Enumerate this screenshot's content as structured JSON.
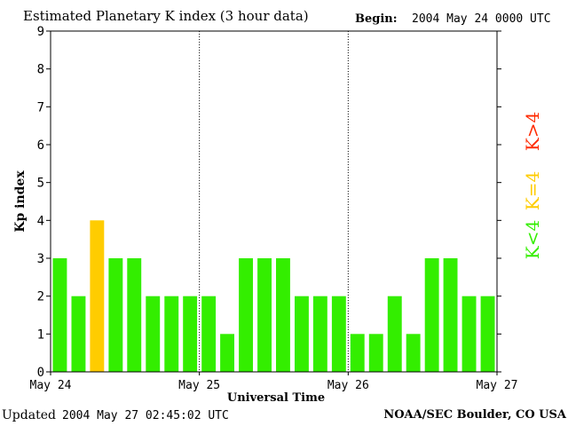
{
  "header": {
    "title": "Estimated Planetary K index (3 hour data)",
    "begin_label": "Begin:",
    "begin_value": "2004 May 24 0000 UTC"
  },
  "footer": {
    "updated_label": "Updated",
    "updated_value": "2004 May 27 02:45:02 UTC",
    "credit": "NOAA/SEC Boulder, CO USA"
  },
  "legend": {
    "high": {
      "label": "K>4",
      "color": "#ff2a00"
    },
    "mid": {
      "label": "K=4",
      "color": "#ffcc00"
    },
    "low": {
      "label": "K<4",
      "color": "#33ee00"
    }
  },
  "chart_data": {
    "type": "bar",
    "xlabel": "Universal Time",
    "ylabel": "Kp index",
    "ylim": [
      0,
      9
    ],
    "yticks": [
      0,
      1,
      2,
      3,
      4,
      5,
      6,
      7,
      8,
      9
    ],
    "grid": false,
    "x_tick_labels": [
      "May 24",
      "May 25",
      "May 26",
      "May 27"
    ],
    "day_dividers": "dotted vertical line at each day boundary",
    "values": [
      3,
      2,
      4,
      3,
      3,
      2,
      2,
      2,
      2,
      1,
      3,
      3,
      3,
      2,
      2,
      2,
      1,
      1,
      2,
      1,
      3,
      3,
      2,
      2
    ],
    "colors": {
      "below4": "#33ee00",
      "equal4": "#ffcc00",
      "above4": "#ff2a00"
    }
  }
}
